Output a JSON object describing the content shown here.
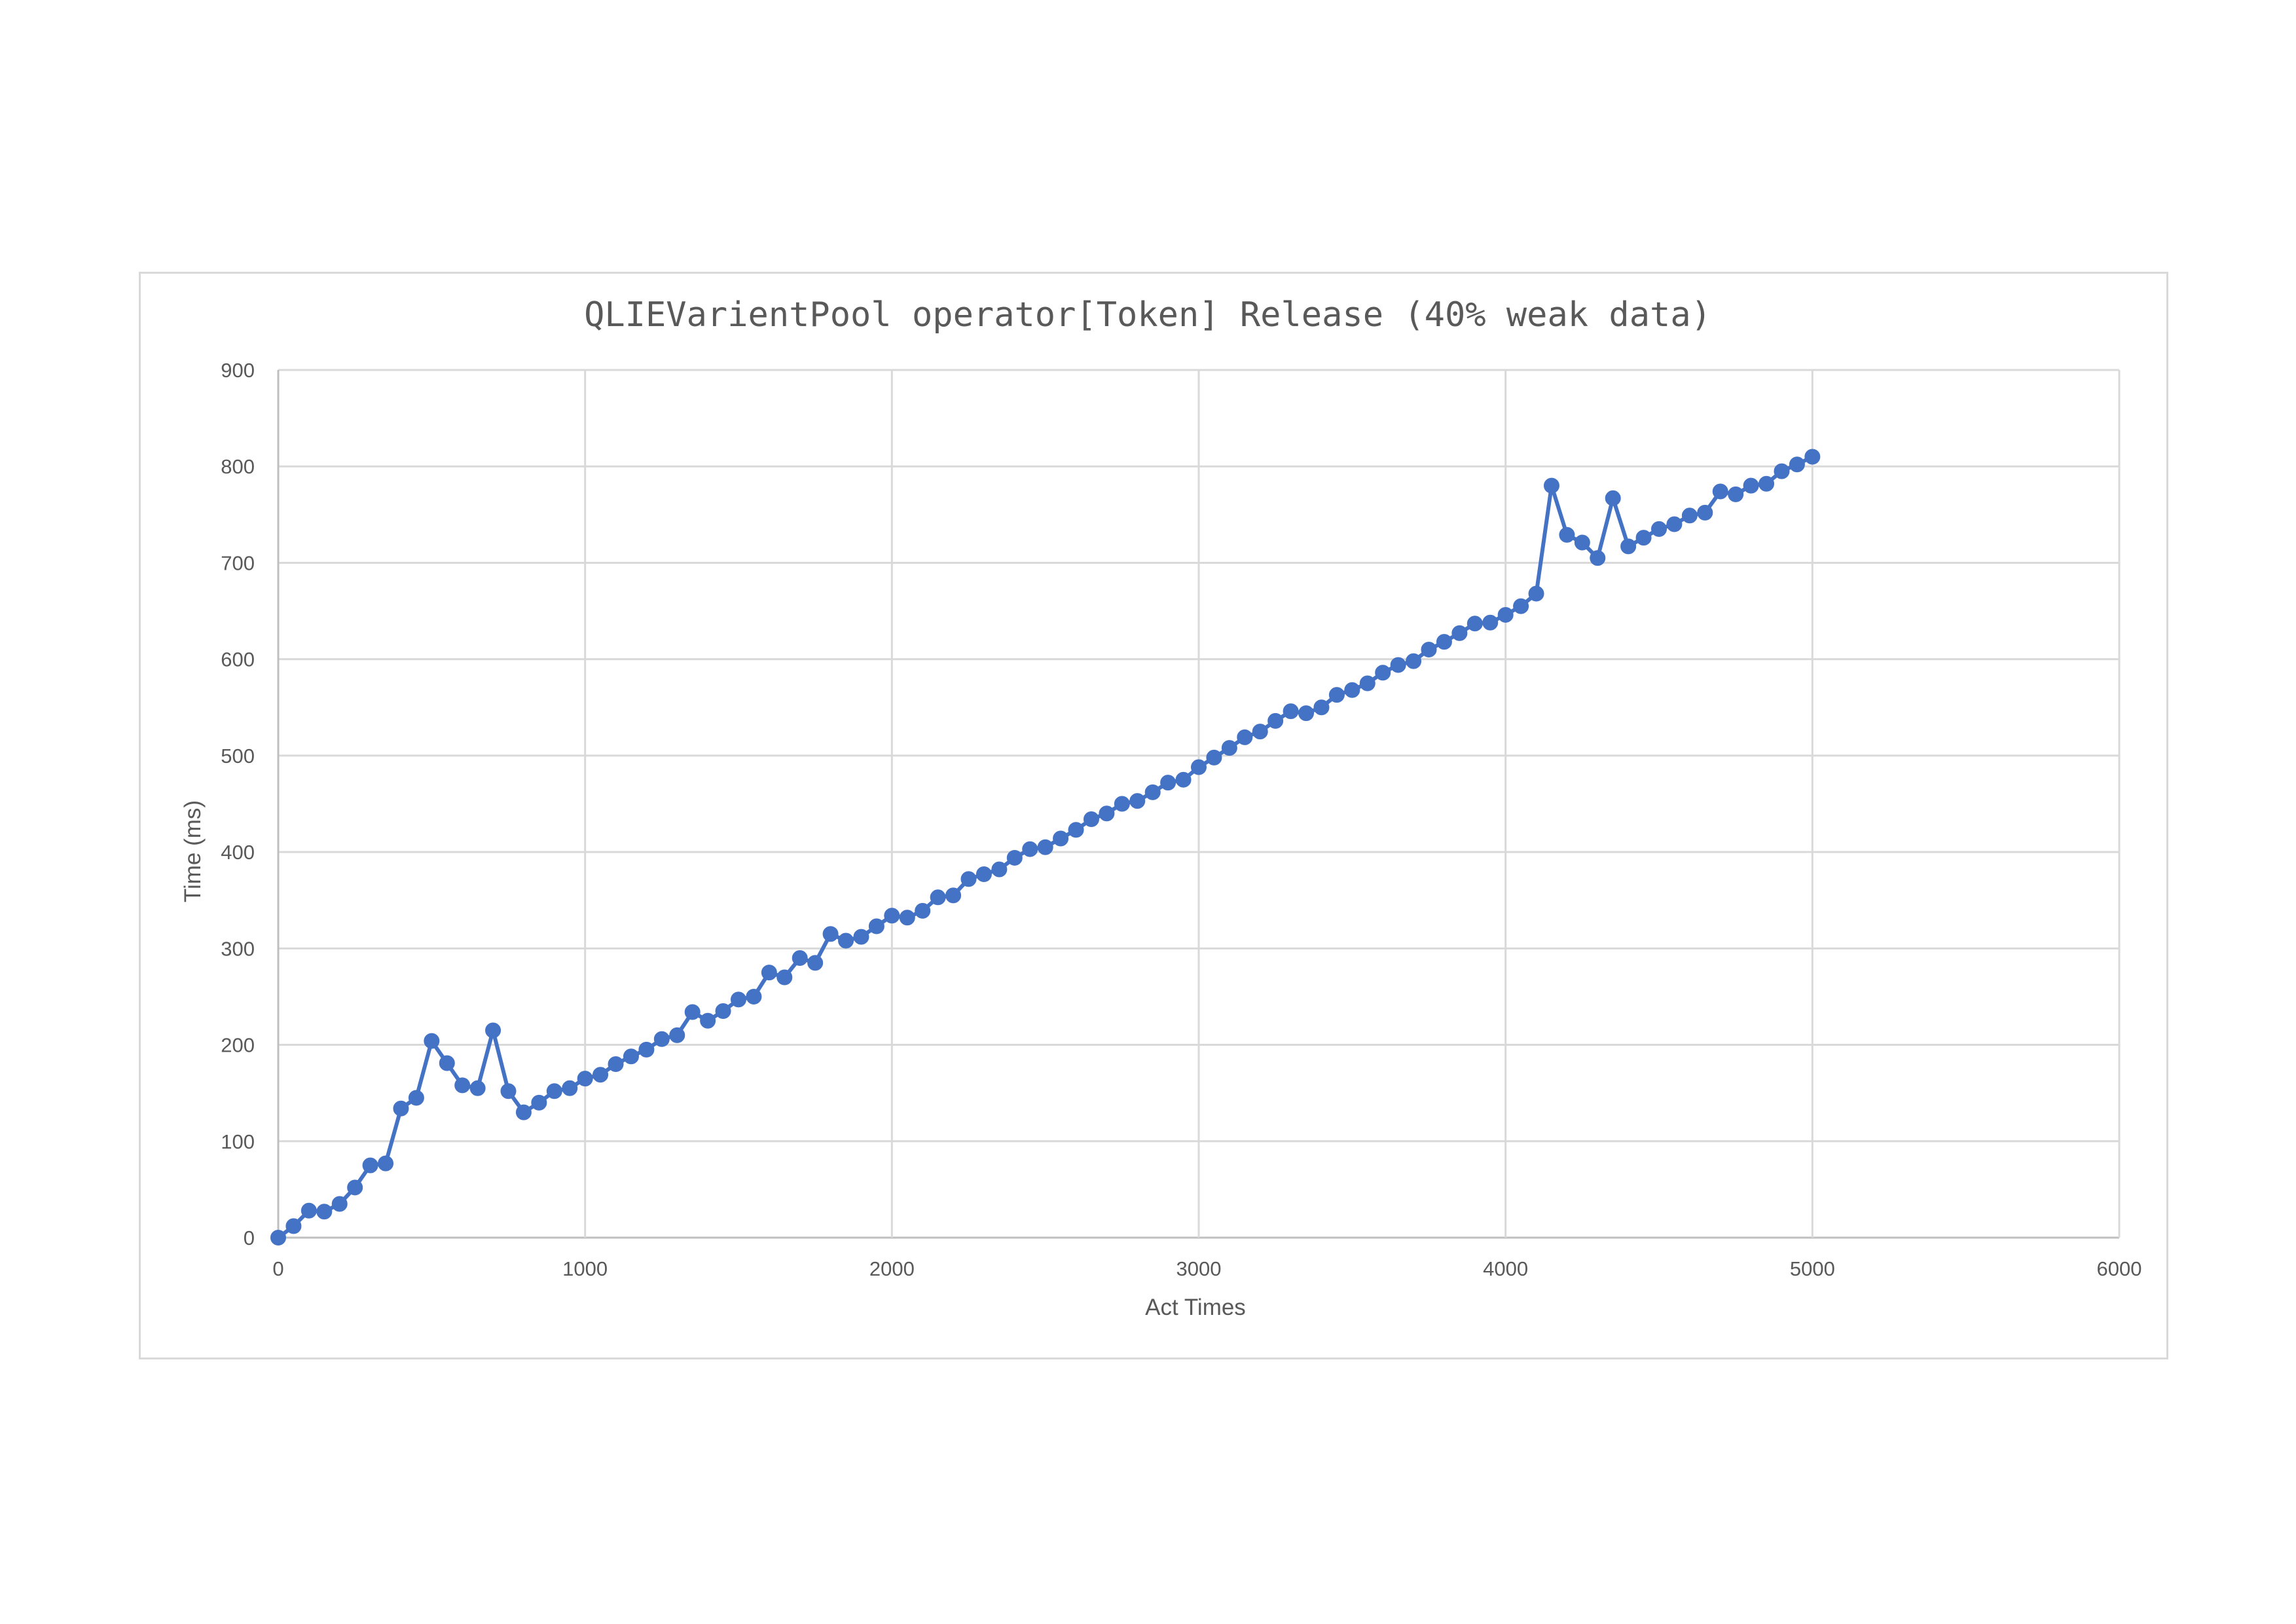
{
  "chart_data": {
    "type": "scatter",
    "title": "QLIEVarientPool operator[Token] Release (40% weak data)",
    "xlabel": "Act Times",
    "ylabel": "Time (ms)",
    "xlim": [
      0,
      6000
    ],
    "ylim": [
      0,
      900
    ],
    "x_ticks": [
      0,
      1000,
      2000,
      3000,
      4000,
      5000,
      6000
    ],
    "y_ticks": [
      0,
      100,
      200,
      300,
      400,
      500,
      600,
      700,
      800,
      900
    ],
    "grid": true,
    "line_color": "#4472c4",
    "marker": "circle",
    "series": [
      {
        "x": [
          0,
          50,
          100,
          150,
          200,
          250,
          300,
          350,
          400,
          450,
          500,
          550,
          600,
          650,
          700,
          750,
          800,
          850,
          900,
          950,
          1000,
          1050,
          1100,
          1150,
          1200,
          1250,
          1300,
          1350,
          1400,
          1450,
          1500,
          1550,
          1600,
          1650,
          1700,
          1750,
          1800,
          1850,
          1900,
          1950,
          2000,
          2050,
          2100,
          2150,
          2200,
          2250,
          2300,
          2350,
          2400,
          2450,
          2500,
          2550,
          2600,
          2650,
          2700,
          2750,
          2800,
          2850,
          2900,
          2950,
          3000,
          3050,
          3100,
          3150,
          3200,
          3250,
          3300,
          3350,
          3400,
          3450,
          3500,
          3550,
          3600,
          3650,
          3700,
          3750,
          3800,
          3850,
          3900,
          3950,
          4000,
          4050,
          4100,
          4150,
          4200,
          4250,
          4300,
          4350,
          4400,
          4450,
          4500,
          4550,
          4600,
          4650,
          4700,
          4750,
          4800,
          4850,
          4900,
          4950,
          5000
        ],
        "values": [
          0,
          12,
          28,
          27,
          35,
          52,
          75,
          77,
          134,
          145,
          204,
          181,
          158,
          155,
          215,
          152,
          130,
          140,
          152,
          155,
          165,
          169,
          180,
          188,
          195,
          206,
          210,
          234,
          225,
          235,
          247,
          250,
          275,
          270,
          290,
          285,
          315,
          308,
          312,
          323,
          334,
          332,
          339,
          353,
          355,
          372,
          377,
          382,
          394,
          403,
          405,
          414,
          423,
          434,
          440,
          450,
          453,
          462,
          472,
          475,
          488,
          498,
          508,
          519,
          525,
          536,
          546,
          544,
          550,
          563,
          568,
          575,
          586,
          594,
          598,
          610,
          618,
          627,
          637,
          638,
          646,
          655,
          668,
          780,
          729,
          721,
          705,
          767,
          717,
          726,
          735,
          740,
          749,
          752,
          774,
          771,
          780,
          782,
          795,
          802,
          810
        ]
      }
    ]
  }
}
